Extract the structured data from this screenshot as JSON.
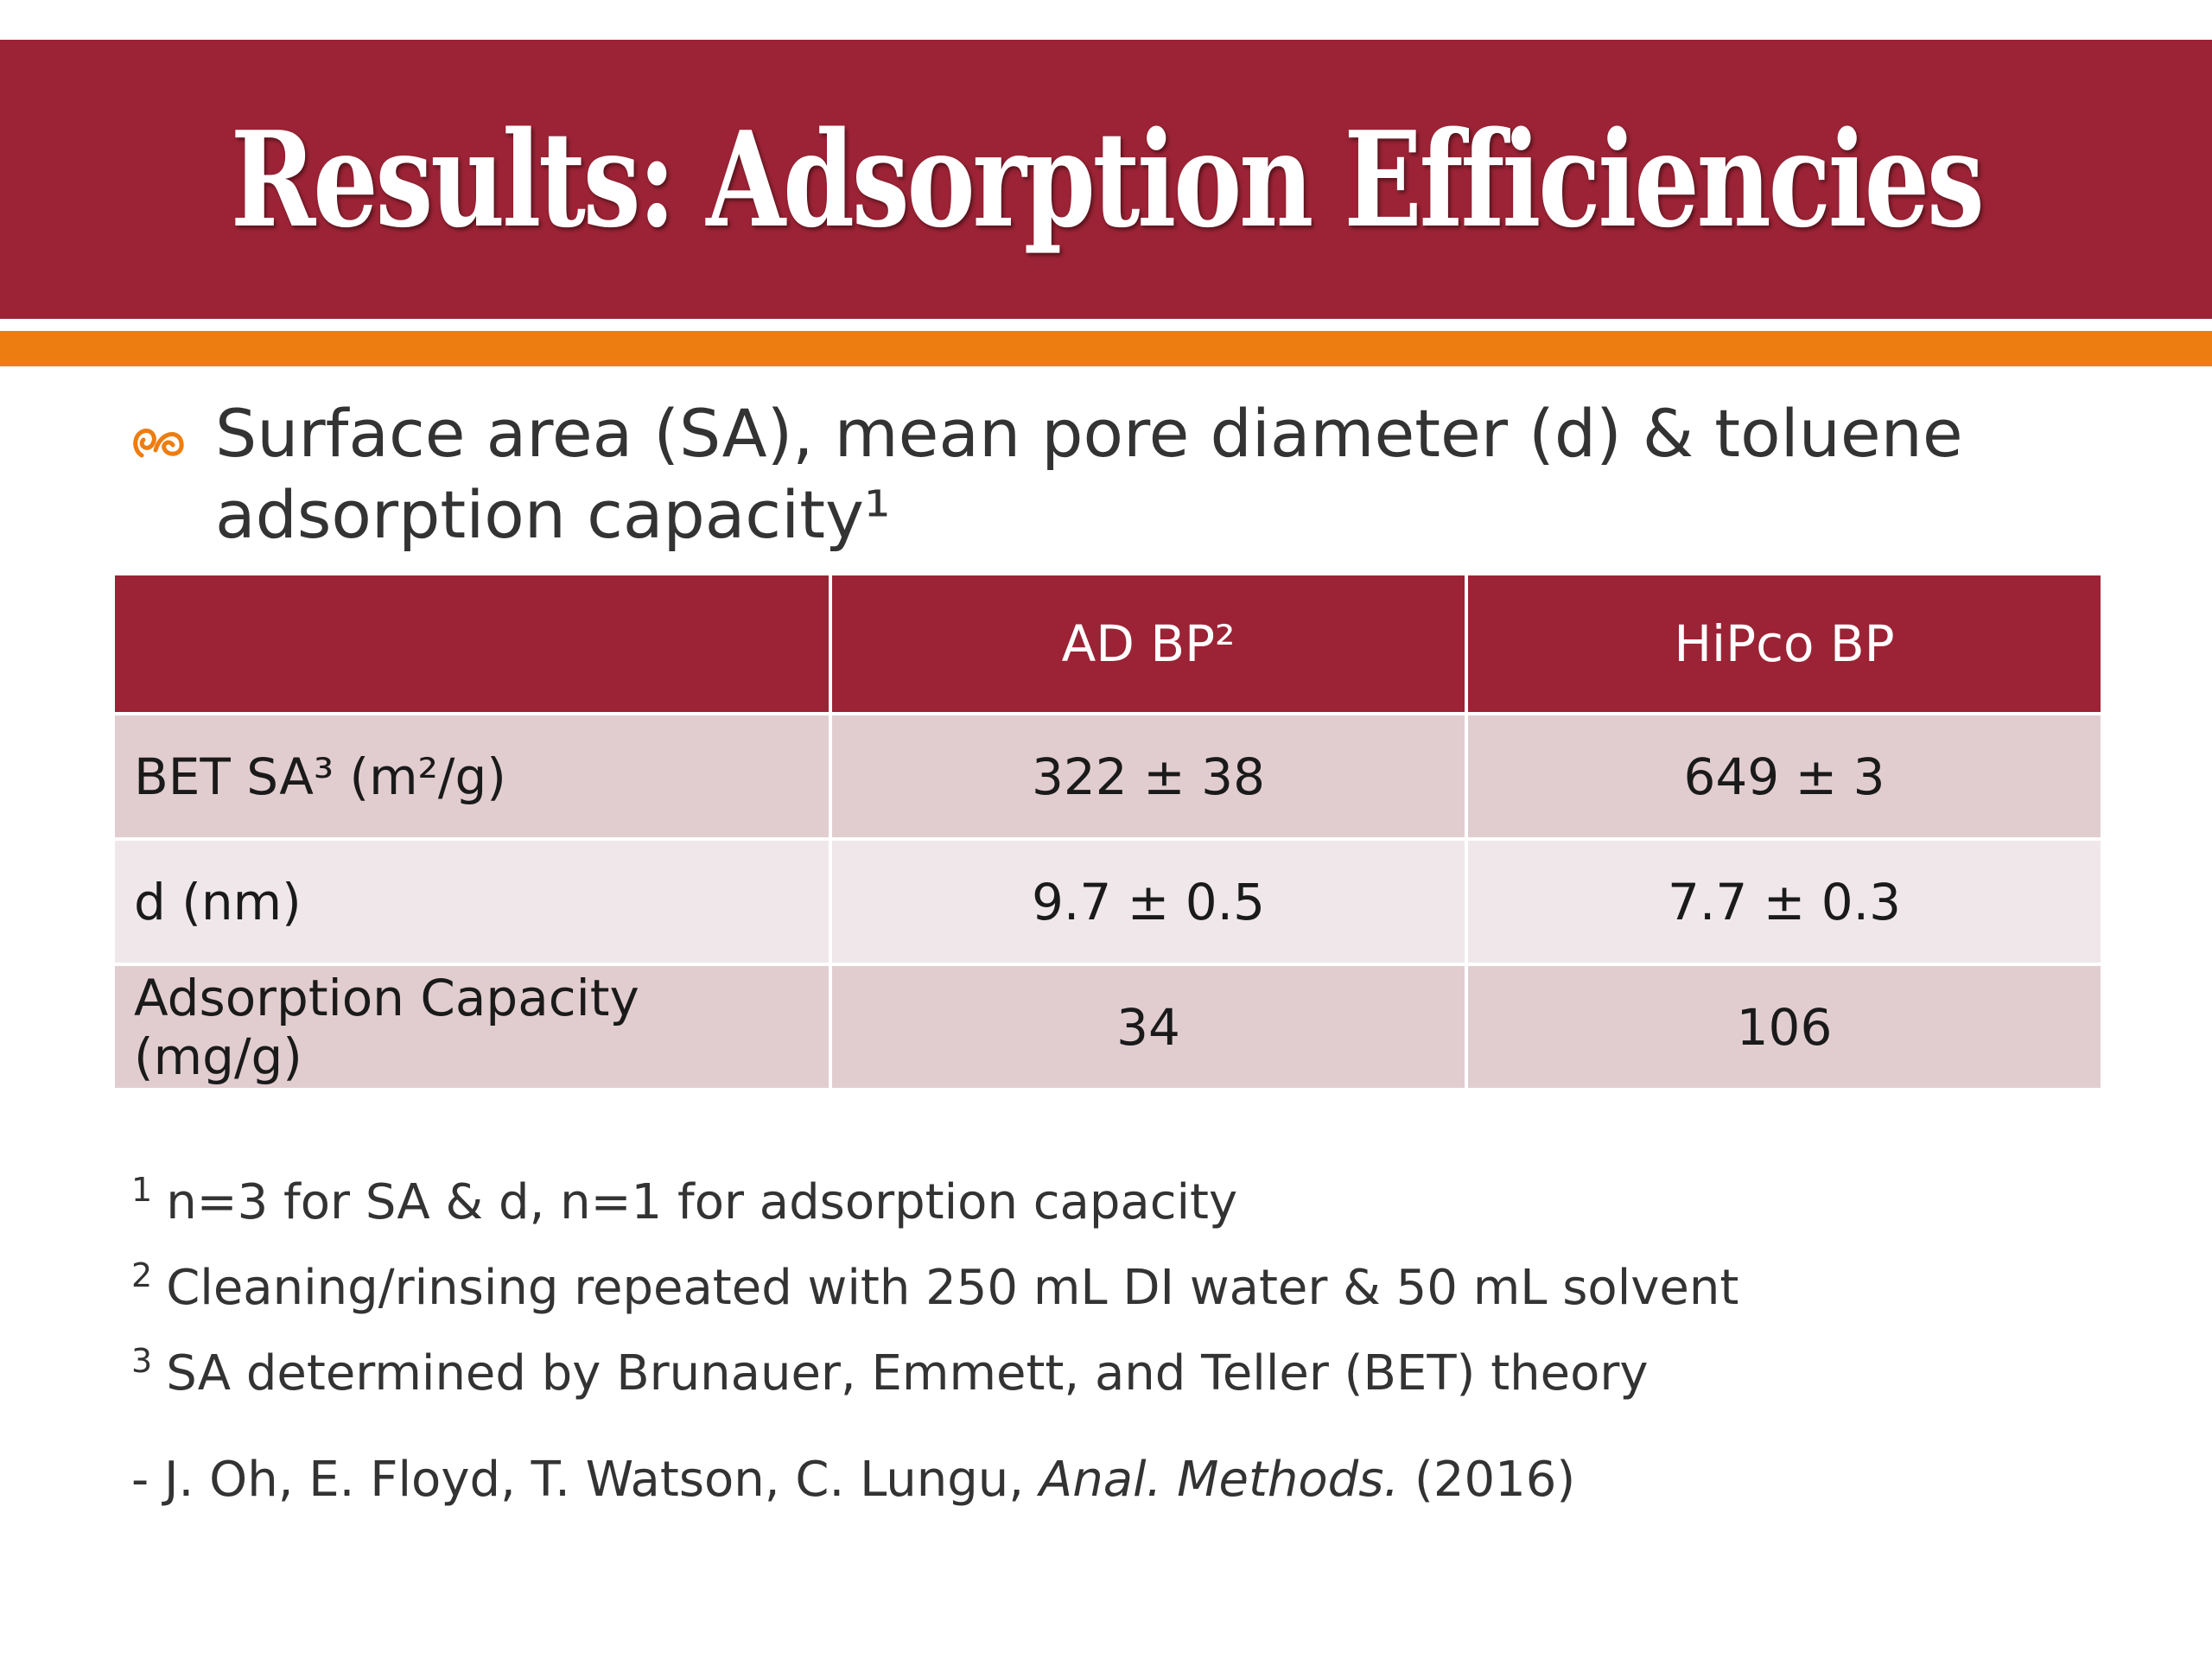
{
  "slide": {
    "title": "Results: Adsorption Efficiencies",
    "bullet_icon": "ornament-bullet-icon",
    "bullet_text": "Surface area (SA), mean pore diameter (d) & toluene adsorption capacity¹"
  },
  "table": {
    "headers": [
      "",
      "AD BP²",
      "HiPco  BP"
    ],
    "rows": [
      [
        "BET SA³ (m²/g)",
        "322 ± 38",
        "649 ± 3"
      ],
      [
        "d (nm)",
        "9.7 ± 0.5",
        "7.7 ± 0.3"
      ],
      [
        "Adsorption Capacity (mg/g)",
        "34",
        "106"
      ]
    ]
  },
  "footnotes": [
    {
      "num": "1",
      "text": "n=3 for SA & d, n=1 for adsorption capacity"
    },
    {
      "num": "2",
      "text": "Cleaning/rinsing repeated with 250 mL DI water & 50 mL solvent"
    },
    {
      "num": "3",
      "text": "SA determined by Brunauer, Emmett, and Teller (BET) theory"
    }
  ],
  "citation": {
    "authors": "- J. Oh, E. Floyd, T. Watson, C. Lungu, ",
    "journal": "Anal. Methods.",
    "year": " (2016)"
  },
  "colors": {
    "title_bar": "#9b2335",
    "stripe": "#ee7d11",
    "table_header": "#9b2335",
    "row_odd": "#e1cdd0",
    "row_even": "#efe7e9"
  }
}
